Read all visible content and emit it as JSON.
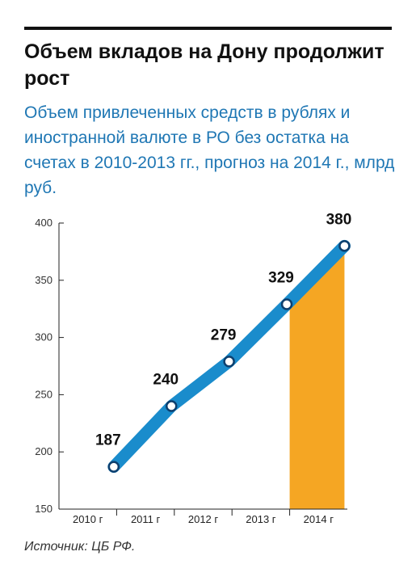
{
  "title": "Объем вкладов на Дону продолжит рост",
  "subtitle": "Объем привлеченных средств в рублях и иностранной валюте в РО без остатка на счетах в 2010-2013 гг., прогноз на 2014 г., млрд руб.",
  "source": "Источник: ЦБ РФ.",
  "colors": {
    "line": "#1a8ccc",
    "forecast_fill": "#f5a623",
    "marker_stroke": "#0d3f6e",
    "marker_fill": "#ffffff",
    "subtitle": "#1f77b4"
  },
  "chart_data": {
    "type": "line",
    "title": "Объем вкладов на Дону продолжит рост",
    "subtitle": "Объем привлеченных средств в рублях и иностранной валюте в РО без остатка на счетах в 2010-2013 гг., прогноз на 2014 г., млрд руб.",
    "categories": [
      "2010 г",
      "2011 г",
      "2012 г",
      "2013 г",
      "2014 г"
    ],
    "values": [
      187,
      240,
      279,
      329,
      380
    ],
    "value_labels": [
      "187",
      "240",
      "279",
      "329",
      "380"
    ],
    "forecast_category": "2014 г",
    "y_ticks": [
      "150",
      "200",
      "250",
      "300",
      "350",
      "400"
    ],
    "ylim": [
      150,
      400
    ],
    "xlabel": "",
    "ylabel": "",
    "grid": false,
    "legend": "none"
  }
}
